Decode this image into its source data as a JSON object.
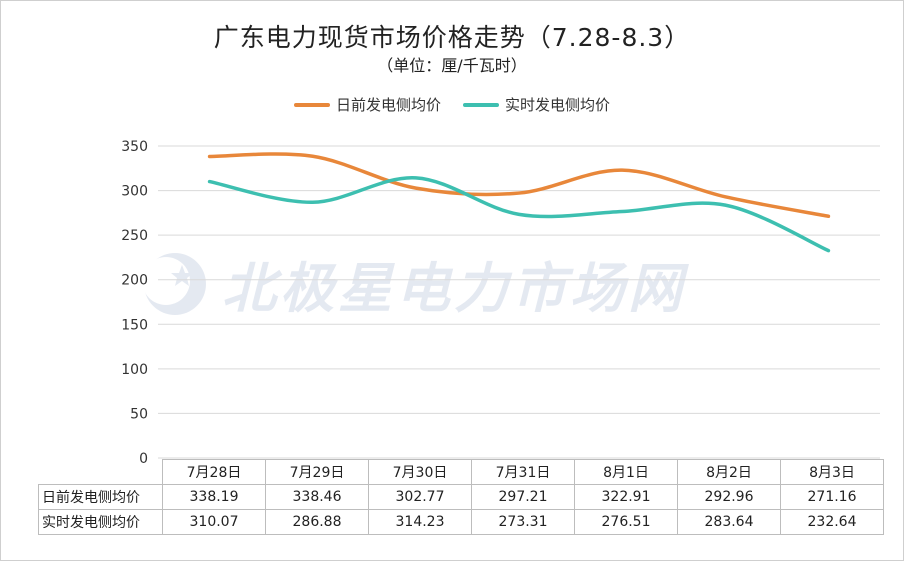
{
  "chart_data": {
    "type": "line",
    "title": "广东电力现货市场价格走势（7.28-8.3）",
    "subtitle": "（单位：厘/千瓦时）",
    "categories": [
      "7月28日",
      "7月29日",
      "7月30日",
      "7月31日",
      "8月1日",
      "8月2日",
      "8月3日"
    ],
    "series": [
      {
        "name": "日前发电侧均价",
        "values": [
          338.19,
          338.46,
          302.77,
          297.21,
          322.91,
          292.96,
          271.16
        ],
        "value_labels": [
          "338.19",
          "338.46",
          "302.77",
          "297.21",
          "322.91",
          "292.96",
          "271.16"
        ],
        "color": "#E8873A"
      },
      {
        "name": "实时发电侧均价",
        "values": [
          310.07,
          286.88,
          314.23,
          273.31,
          276.51,
          283.64,
          232.64
        ],
        "value_labels": [
          "310.07",
          "286.88",
          "314.23",
          "273.31",
          "276.51",
          "283.64",
          "232.64"
        ],
        "color": "#3DBFB0"
      }
    ],
    "yticks": [
      "0",
      "50",
      "100",
      "150",
      "200",
      "250",
      "300",
      "350"
    ],
    "ylim": [
      0,
      350
    ],
    "grid": true,
    "legend": "top-center",
    "smooth": true
  },
  "watermark": {
    "text": "北极星电力市场网"
  }
}
